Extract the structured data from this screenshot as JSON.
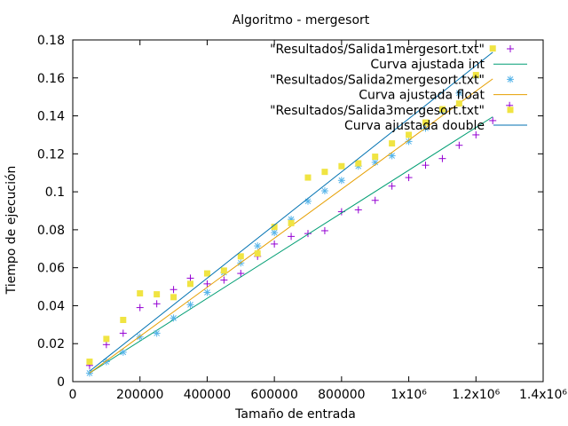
{
  "chart_data": {
    "type": "scatter",
    "title": "Algoritmo - mergesort",
    "xlabel": "Tamaño de entrada",
    "ylabel": "Tiempo de ejecución",
    "xlim": [
      0,
      1400000
    ],
    "ylim": [
      0,
      0.18
    ],
    "xticks": [
      0,
      200000,
      400000,
      600000,
      800000,
      1000000,
      1200000,
      1400000
    ],
    "xtick_labels": [
      "0",
      "200000",
      "400000",
      "600000",
      "800000",
      "1x10⁶",
      "1.2x10⁶",
      "1.4x10⁶"
    ],
    "yticks": [
      0,
      0.02,
      0.04,
      0.06,
      0.08,
      0.1,
      0.12,
      0.14,
      0.16,
      0.18
    ],
    "ytick_labels": [
      "0",
      "0.02",
      "0.04",
      "0.06",
      "0.08",
      "0.1",
      "0.12",
      "0.14",
      "0.16",
      "0.18"
    ],
    "grid": false,
    "legend_position": "top-right",
    "series": [
      {
        "name": "\"Resultados/Salida1mergesort.txt\"",
        "kind": "points",
        "marker": "plus",
        "color": "#9400d3",
        "x": [
          50000,
          100000,
          150000,
          200000,
          250000,
          300000,
          350000,
          400000,
          450000,
          500000,
          550000,
          600000,
          650000,
          700000,
          750000,
          800000,
          850000,
          900000,
          950000,
          1000000,
          1050000,
          1100000,
          1150000,
          1200000,
          1250000,
          1300000
        ],
        "y": [
          0.0085,
          0.0195,
          0.0255,
          0.039,
          0.041,
          0.0485,
          0.0545,
          0.0515,
          0.0535,
          0.057,
          0.066,
          0.0725,
          0.0765,
          0.078,
          0.0795,
          0.0895,
          0.0905,
          0.0955,
          0.103,
          0.1075,
          0.114,
          0.1175,
          0.1245,
          0.13,
          0.1375,
          0.1455
        ]
      },
      {
        "name": "Curva ajustada int",
        "kind": "line",
        "color": "#009e73",
        "x": [
          50000,
          1250000
        ],
        "y": [
          0.0045,
          0.1395
        ]
      },
      {
        "name": "\"Resultados/Salida2mergesort.txt\"",
        "kind": "points",
        "marker": "star",
        "color": "#56b4e9",
        "x": [
          50000,
          100000,
          150000,
          200000,
          250000,
          300000,
          350000,
          400000,
          450000,
          500000,
          550000,
          600000,
          650000,
          700000,
          750000,
          800000,
          850000,
          900000,
          950000,
          1000000,
          1050000,
          1100000,
          1150000,
          1200000
        ],
        "y": [
          0.0045,
          0.0105,
          0.0155,
          0.0235,
          0.0255,
          0.0335,
          0.0405,
          0.047,
          0.0575,
          0.0625,
          0.0715,
          0.0785,
          0.0855,
          0.095,
          0.1005,
          0.106,
          0.1135,
          0.1155,
          0.119,
          0.1265,
          0.1335,
          0.1425,
          0.152,
          0.161
        ]
      },
      {
        "name": "Curva ajustada float",
        "kind": "line",
        "color": "#e69f00",
        "x": [
          50000,
          1250000
        ],
        "y": [
          0.0045,
          0.1595
        ]
      },
      {
        "name": "\"Resultados/Salida3mergesort.txt\"",
        "kind": "points",
        "marker": "square",
        "color": "#f0e442",
        "x": [
          50000,
          100000,
          150000,
          200000,
          250000,
          300000,
          350000,
          400000,
          450000,
          500000,
          550000,
          600000,
          650000,
          700000,
          750000,
          800000,
          850000,
          900000,
          950000,
          1000000,
          1050000,
          1100000,
          1150000,
          1200000,
          1250000
        ],
        "y": [
          0.0105,
          0.0225,
          0.0325,
          0.0465,
          0.046,
          0.0445,
          0.0515,
          0.057,
          0.0585,
          0.066,
          0.0675,
          0.0815,
          0.0835,
          0.1075,
          0.1105,
          0.1135,
          0.115,
          0.1185,
          0.1255,
          0.13,
          0.1365,
          0.1435,
          0.1465,
          0.1615,
          0.1755
        ]
      },
      {
        "name": "Curva ajustada double",
        "kind": "line",
        "color": "#0072b2",
        "x": [
          50000,
          1250000
        ],
        "y": [
          0.0055,
          0.1735
        ]
      }
    ]
  }
}
